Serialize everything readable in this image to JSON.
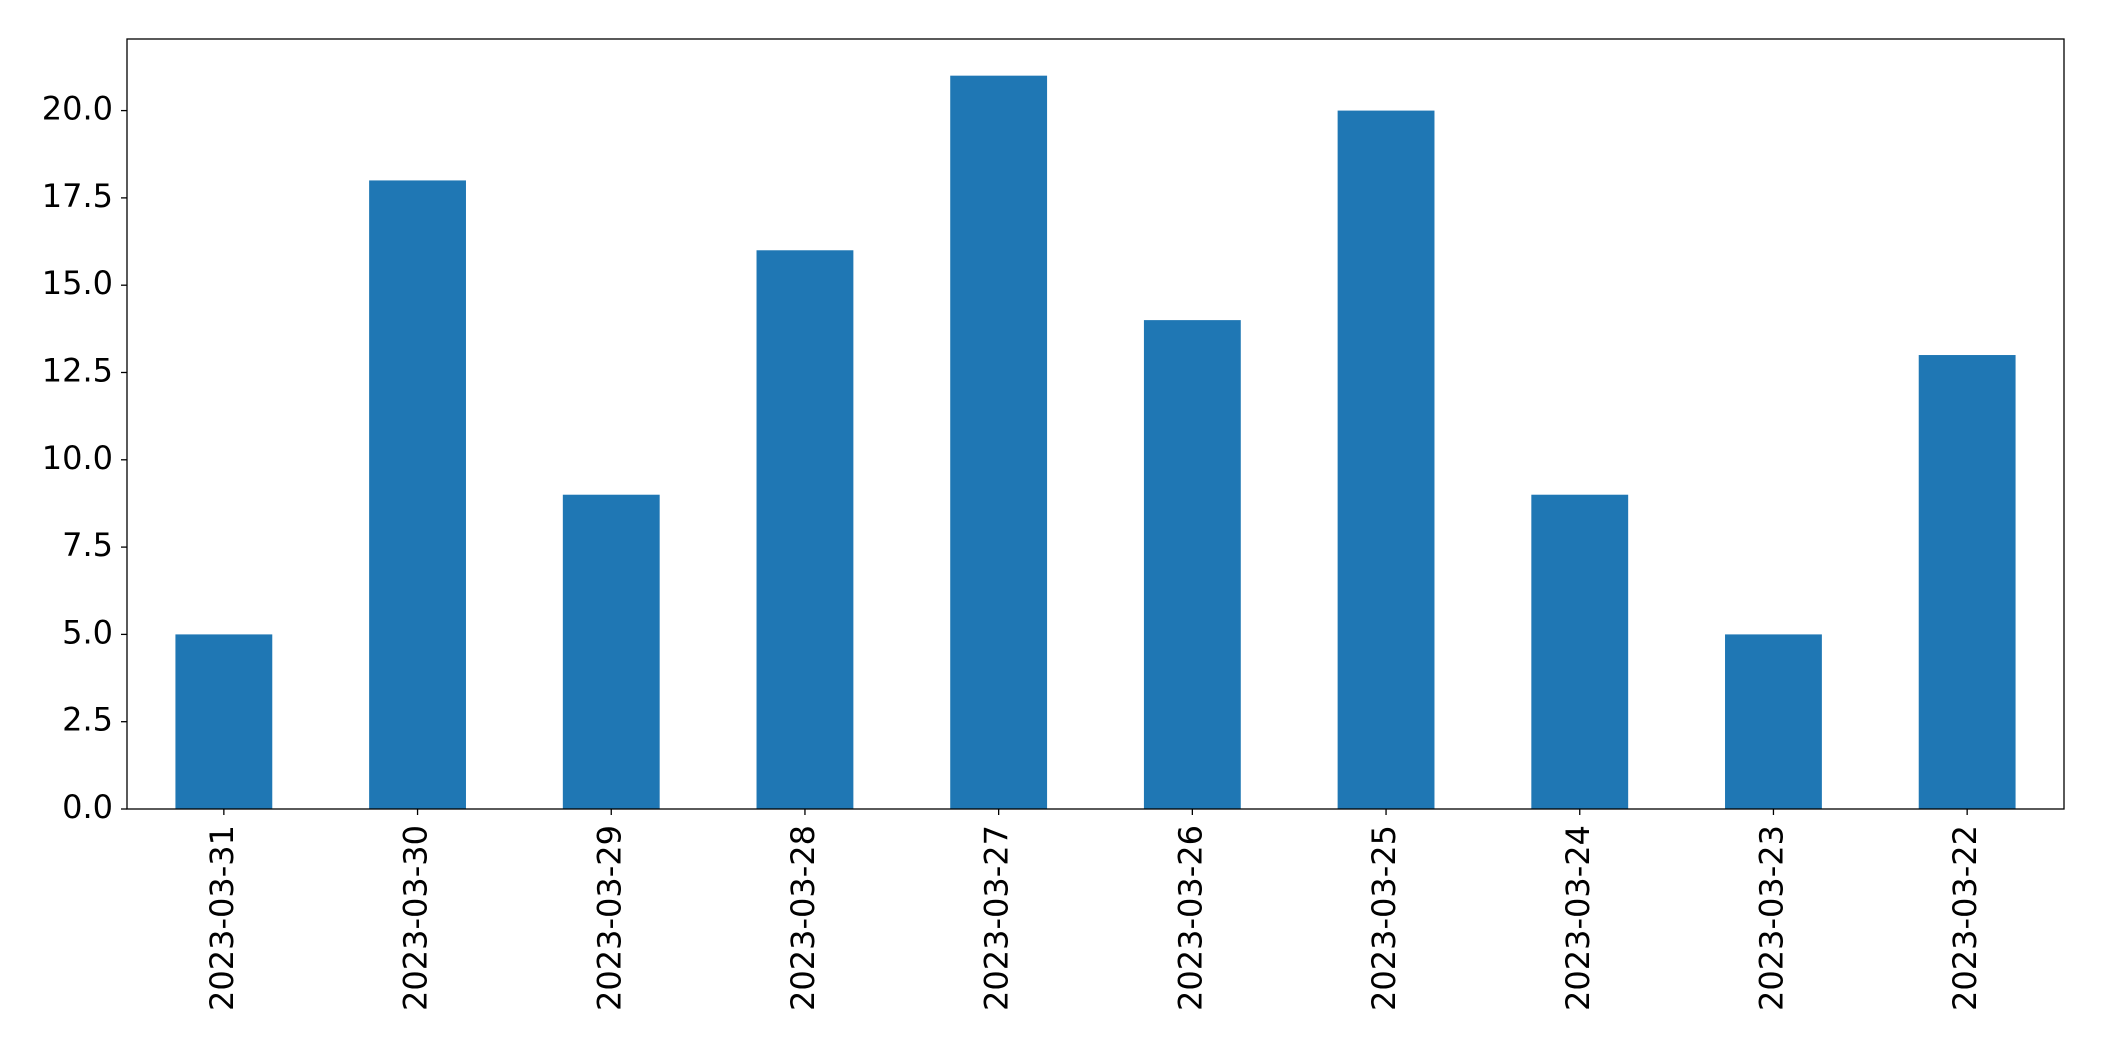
{
  "chart_data": {
    "type": "bar",
    "categories": [
      "2023-03-31",
      "2023-03-30",
      "2023-03-29",
      "2023-03-28",
      "2023-03-27",
      "2023-03-26",
      "2023-03-25",
      "2023-03-24",
      "2023-03-23",
      "2023-03-22"
    ],
    "values": [
      5,
      18,
      9,
      16,
      21,
      14,
      20,
      9,
      5,
      13
    ],
    "color": "#1f77b4",
    "ylim": [
      0,
      22.05
    ],
    "yticks": [
      {
        "value": 0,
        "label": "0.0"
      },
      2.5,
      {
        "value": 5,
        "label": "5.0"
      },
      7.5,
      {
        "value": 10,
        "label": "10.0"
      },
      12.5,
      {
        "value": 15,
        "label": "15.0"
      },
      17.5,
      {
        "value": 20,
        "label": "20.0"
      }
    ],
    "grid": false
  }
}
